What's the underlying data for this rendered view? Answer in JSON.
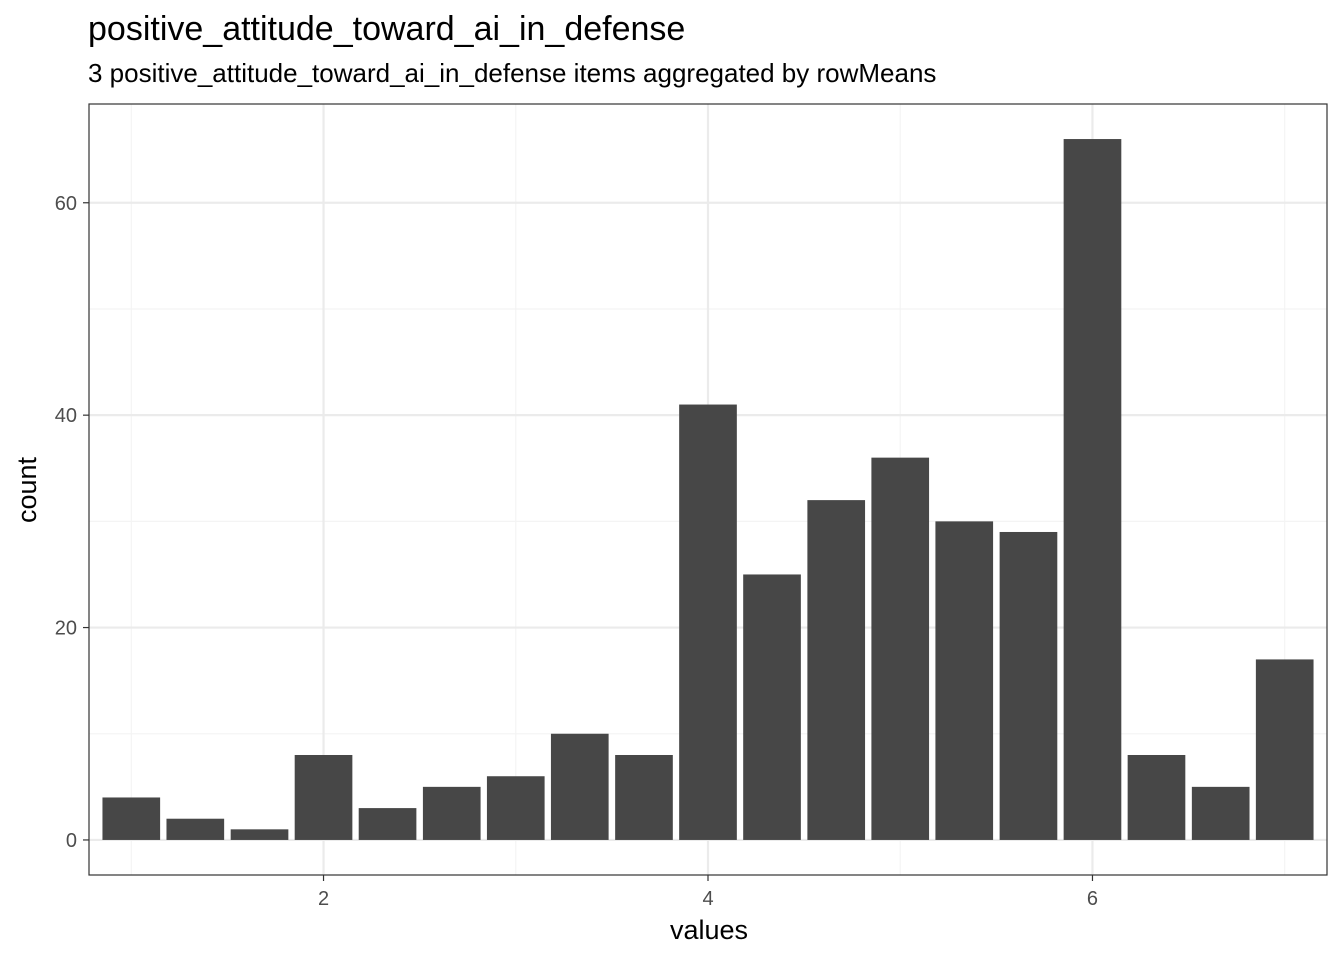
{
  "chart_data": {
    "type": "bar",
    "title": "positive_attitude_toward_ai_in_defense",
    "subtitle": "3 positive_attitude_toward_ai_in_defense items aggregated by rowMeans",
    "xlabel": "values",
    "ylabel": "count",
    "x": [
      1.0,
      1.333,
      1.667,
      2.0,
      2.333,
      2.667,
      3.0,
      3.333,
      3.667,
      4.0,
      4.333,
      4.667,
      5.0,
      5.333,
      5.667,
      6.0,
      6.333,
      6.667,
      7.0
    ],
    "values": [
      4,
      2,
      1,
      8,
      3,
      5,
      6,
      10,
      8,
      41,
      25,
      32,
      36,
      30,
      29,
      66,
      8,
      5,
      17
    ],
    "bar_width": 0.3,
    "xlim": [
      0.78,
      7.22
    ],
    "ylim": [
      -3.3,
      69.3
    ],
    "x_ticks": [
      2,
      4,
      6
    ],
    "x_minor_ticks": [
      1,
      3,
      5,
      7
    ],
    "y_ticks": [
      0,
      20,
      40,
      60
    ],
    "y_minor_ticks": [
      10,
      30,
      50
    ],
    "grid": true,
    "theme": "bw",
    "colors": {
      "bar": "#474747",
      "grid_major": "#ebebeb",
      "grid_minor": "#f4f4f4",
      "panel_border": "#333333",
      "tick_label": "#4d4d4d"
    }
  }
}
